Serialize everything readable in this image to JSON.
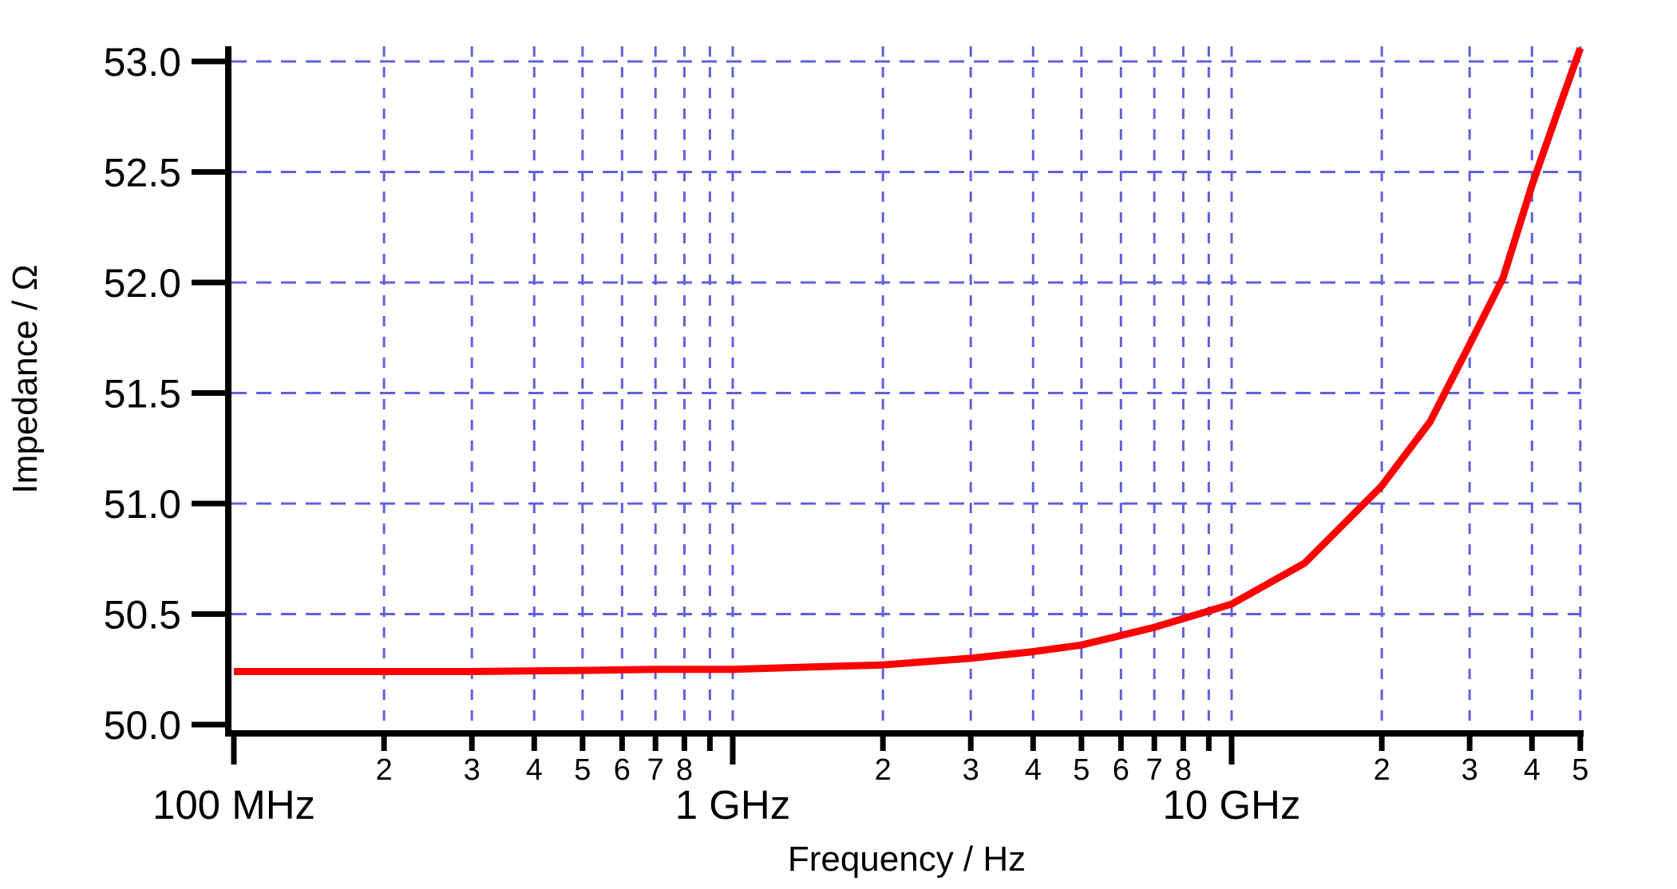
{
  "chart_data": {
    "type": "line",
    "title": "",
    "x_axis": {
      "label": "Frequency / Hz",
      "scale": "log",
      "min_hz": 100000000.0,
      "max_hz": 50000000000.0,
      "major_ticks": [
        {
          "hz": 100000000.0,
          "label": "100 MHz",
          "grid": false
        },
        {
          "hz": 1000000000.0,
          "label": "1 GHz",
          "grid": true
        },
        {
          "hz": 10000000000.0,
          "label": "10 GHz",
          "grid": true
        }
      ],
      "minor_ticks": [
        {
          "hz": 200000000.0,
          "label": "2",
          "grid": true
        },
        {
          "hz": 300000000.0,
          "label": "3",
          "grid": true
        },
        {
          "hz": 400000000.0,
          "label": "4",
          "grid": true
        },
        {
          "hz": 500000000.0,
          "label": "5",
          "grid": true
        },
        {
          "hz": 600000000.0,
          "label": "6",
          "grid": true
        },
        {
          "hz": 700000000.0,
          "label": "7",
          "grid": true
        },
        {
          "hz": 800000000.0,
          "label": "8",
          "grid": true
        },
        {
          "hz": 900000000.0,
          "label": "",
          "grid": true
        },
        {
          "hz": 2000000000.0,
          "label": "2",
          "grid": true
        },
        {
          "hz": 3000000000.0,
          "label": "3",
          "grid": true
        },
        {
          "hz": 4000000000.0,
          "label": "4",
          "grid": true
        },
        {
          "hz": 5000000000.0,
          "label": "5",
          "grid": true
        },
        {
          "hz": 6000000000.0,
          "label": "6",
          "grid": true
        },
        {
          "hz": 7000000000.0,
          "label": "7",
          "grid": true
        },
        {
          "hz": 8000000000.0,
          "label": "8",
          "grid": true
        },
        {
          "hz": 9000000000.0,
          "label": "",
          "grid": true
        },
        {
          "hz": 20000000000.0,
          "label": "2",
          "grid": true
        },
        {
          "hz": 30000000000.0,
          "label": "3",
          "grid": true
        },
        {
          "hz": 40000000000.0,
          "label": "4",
          "grid": true
        },
        {
          "hz": 50000000000.0,
          "label": "5",
          "grid": true
        }
      ]
    },
    "y_axis": {
      "label": "Impedance / Ω",
      "min_ohm": 50.0,
      "max_ohm": 53.0,
      "ticks": [
        {
          "v": 50.0,
          "label": "50.0",
          "grid": false
        },
        {
          "v": 50.5,
          "label": "50.5",
          "grid": true
        },
        {
          "v": 51.0,
          "label": "51.0",
          "grid": true
        },
        {
          "v": 51.5,
          "label": "51.5",
          "grid": true
        },
        {
          "v": 52.0,
          "label": "52.0",
          "grid": true
        },
        {
          "v": 52.5,
          "label": "52.5",
          "grid": true
        },
        {
          "v": 53.0,
          "label": "53.0",
          "grid": true
        }
      ]
    },
    "grid": {
      "color": "#6060dd",
      "style": "dashed"
    },
    "axis_color": "#000000",
    "series": [
      {
        "name": "impedance",
        "color": "#ff0000",
        "points_hz_ohm": [
          [
            100000000.0,
            50.24
          ],
          [
            200000000.0,
            50.24
          ],
          [
            300000000.0,
            50.24
          ],
          [
            500000000.0,
            50.245
          ],
          [
            700000000.0,
            50.25
          ],
          [
            1000000000.0,
            50.25
          ],
          [
            1400000000.0,
            50.26
          ],
          [
            2000000000.0,
            50.27
          ],
          [
            3000000000.0,
            50.3
          ],
          [
            4000000000.0,
            50.33
          ],
          [
            5000000000.0,
            50.36
          ],
          [
            7000000000.0,
            50.44
          ],
          [
            10000000000.0,
            50.545
          ],
          [
            14000000000.0,
            50.73
          ],
          [
            20000000000.0,
            51.08
          ],
          [
            25000000000.0,
            51.37
          ],
          [
            30000000000.0,
            51.72
          ],
          [
            35000000000.0,
            52.02
          ],
          [
            40000000000.0,
            52.44
          ],
          [
            45000000000.0,
            52.77
          ],
          [
            50000000000.0,
            53.06
          ]
        ]
      }
    ]
  }
}
